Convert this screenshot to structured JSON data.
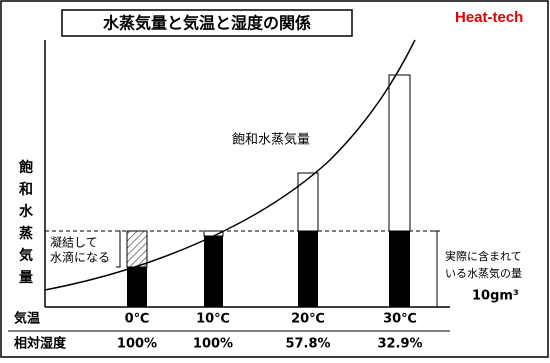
{
  "title": "水蒸気量と気温と湿度の関係",
  "brand": "Heat-tech",
  "y_axis_label": [
    "飽",
    "和",
    "水",
    "蒸",
    "気",
    "量"
  ],
  "curve_label": "飽和水蒸気量",
  "condense_note": [
    "凝結して",
    "水滴になる"
  ],
  "actual_note": [
    "実際に含まれて",
    "いる水蒸気の量"
  ],
  "actual_value": "10gm³",
  "rows": {
    "temperature": {
      "label": "気温",
      "values": [
        "0℃",
        "10℃",
        "20℃",
        "30℃"
      ]
    },
    "humidity": {
      "label": "相対湿度",
      "values": [
        "100%",
        "100%",
        "57.8%",
        "32.9%"
      ]
    }
  }
}
